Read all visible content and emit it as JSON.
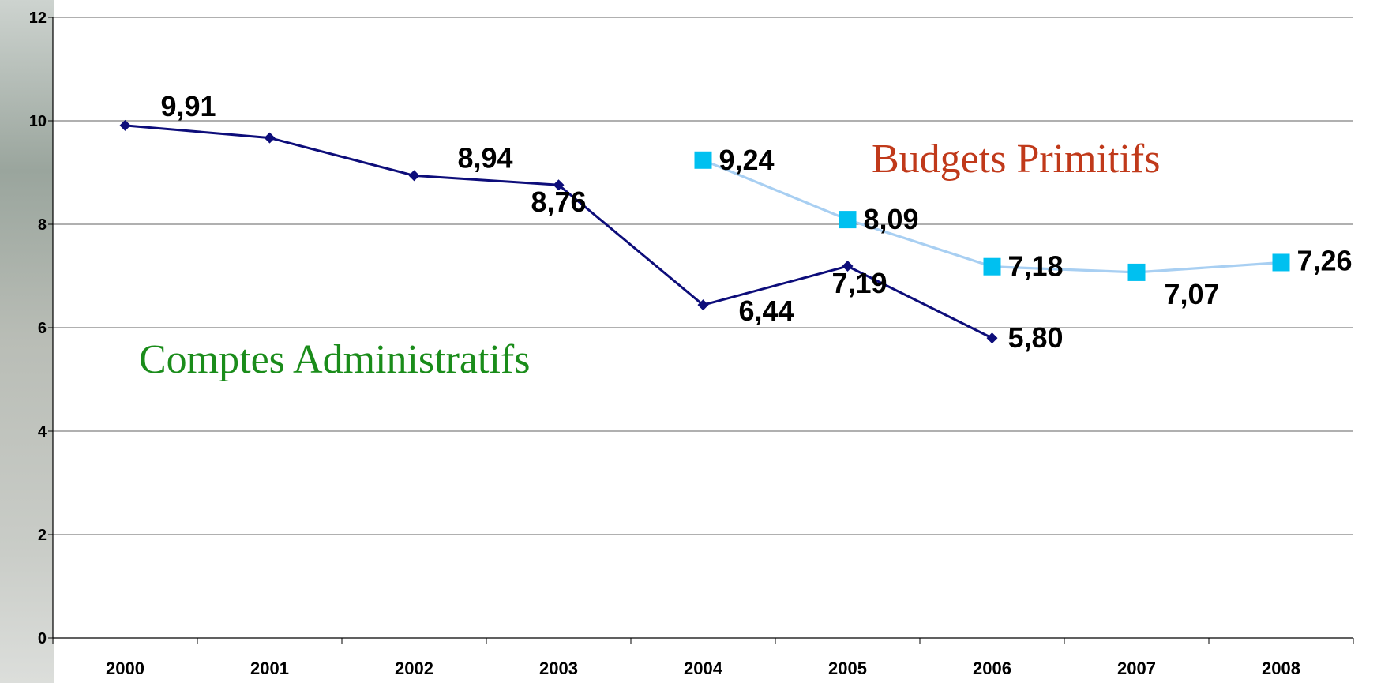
{
  "chart_data": {
    "type": "line",
    "categories": [
      "2000",
      "2001",
      "2002",
      "2003",
      "2004",
      "2005",
      "2006",
      "2007",
      "2008"
    ],
    "ylim": [
      0,
      12
    ],
    "y_ticks": [
      "0",
      "2",
      "4",
      "6",
      "8",
      "10",
      "12"
    ],
    "grid": true,
    "series": [
      {
        "name": "Comptes Administratifs",
        "color": "#0d0d7a",
        "name_color": "#1a8c1a",
        "marker": "diamond",
        "values": [
          9.91,
          9.67,
          8.94,
          8.76,
          6.44,
          7.19,
          5.8,
          null,
          null
        ],
        "labels": [
          "9,91",
          "",
          "8,94",
          "8,76",
          "6,44",
          "7,19",
          "5,80",
          "",
          ""
        ]
      },
      {
        "name": "Budgets Primitifs",
        "color": "#a8cff2",
        "marker_color": "#00c0f0",
        "name_color": "#c0391a",
        "marker": "square",
        "values": [
          null,
          null,
          null,
          null,
          9.24,
          8.09,
          7.18,
          7.07,
          7.26
        ],
        "labels": [
          "",
          "",
          "",
          "",
          "9,24",
          "8,09",
          "7,18",
          "7,07",
          "7,26"
        ]
      }
    ]
  }
}
